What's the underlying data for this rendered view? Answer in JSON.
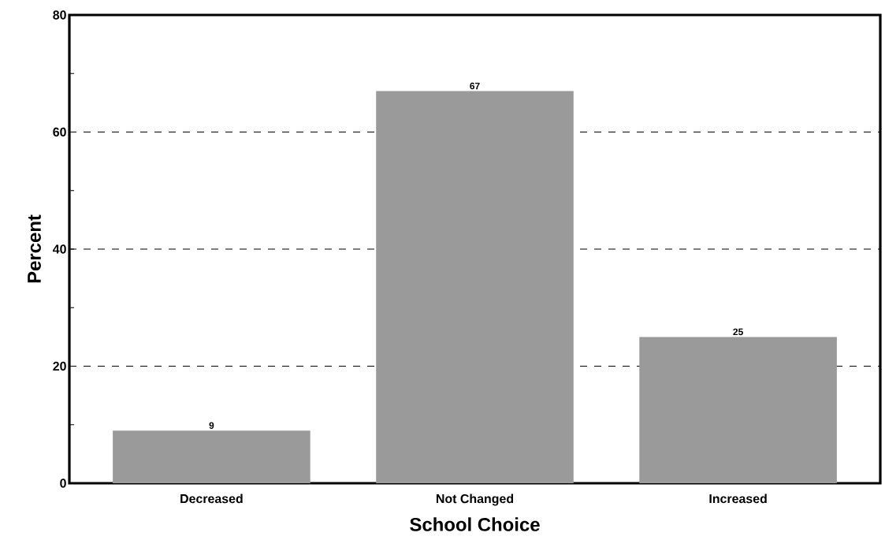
{
  "chart_data": {
    "type": "bar",
    "xlabel": "School Choice",
    "ylabel": "Percent",
    "categories": [
      "Decreased",
      "Not Changed",
      "Increased"
    ],
    "values": [
      9,
      67,
      25
    ],
    "color": "#9a9a9a",
    "data_labels": true,
    "ylim": [
      0,
      80
    ],
    "yticks": [
      0,
      {
        "value": 10,
        "label": null
      },
      20,
      {
        "value": 30,
        "label": null
      },
      40,
      {
        "value": 50,
        "label": null
      },
      60,
      {
        "value": 70,
        "label": null
      },
      80
    ],
    "grid": "y"
  }
}
